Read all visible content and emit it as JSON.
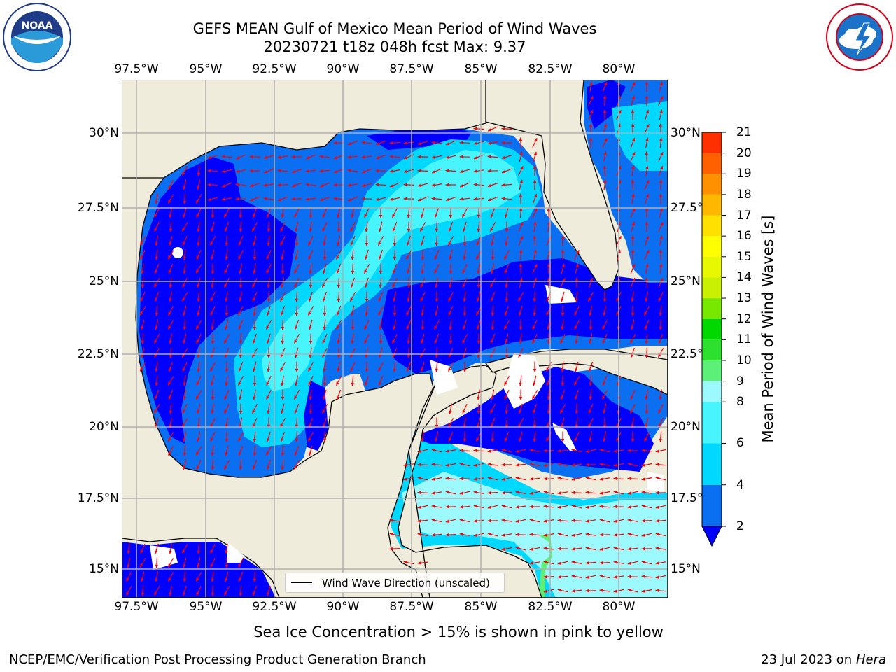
{
  "title": {
    "line1": "GEFS MEAN Gulf of Mexico Mean Period of Wind Waves",
    "line2": "20230721 t18z 048h fcst   Max: 9.37"
  },
  "logos": {
    "left": "noara-logo",
    "right": "nws-logo",
    "left_text": "NOAA"
  },
  "map": {
    "lon_ticks": [
      "97.5°W",
      "95°W",
      "92.5°W",
      "90°W",
      "87.5°W",
      "85°W",
      "82.5°W",
      "80°W"
    ],
    "lat_ticks_left": [
      "30°N",
      "27.5°N",
      "25°N",
      "22.5°N",
      "20°N",
      "17.5°N",
      "15°N"
    ],
    "lat_ticks_right": [
      "30°N",
      "27.5°",
      "25°N",
      "22.5°",
      "20°N",
      "17.5°",
      "15°N"
    ],
    "legend_label": "Wind Wave Direction (unscaled)",
    "land_color": "#efecdc",
    "arrow_color": "#ff0000"
  },
  "colorbar": {
    "label": "Mean Period of Wind Waves [s]",
    "ticks": [
      "2",
      "4",
      "6",
      "8",
      "9",
      "10",
      "11",
      "12",
      "13",
      "14",
      "15",
      "16",
      "17",
      "18",
      "19",
      "20",
      "21"
    ],
    "colors": [
      "#0a6ff0",
      "#00d8ff",
      "#48f5ff",
      "#9cfaff",
      "#5cf078",
      "#2ee02e",
      "#00d800",
      "#78e800",
      "#c8f000",
      "#e8f800",
      "#ffff00",
      "#ffe000",
      "#ffb800",
      "#ff9000",
      "#ff6000",
      "#ff3000",
      "#ff0000"
    ],
    "under_color": "#0000ff"
  },
  "note": "Sea Ice Concentration > 15% is shown in pink to yellow",
  "footer": {
    "left": "NCEP/EMC/Verification Post Processing Product Generation Branch",
    "right_prefix": "23 Jul 2023 on ",
    "right_host": "Hera"
  }
}
